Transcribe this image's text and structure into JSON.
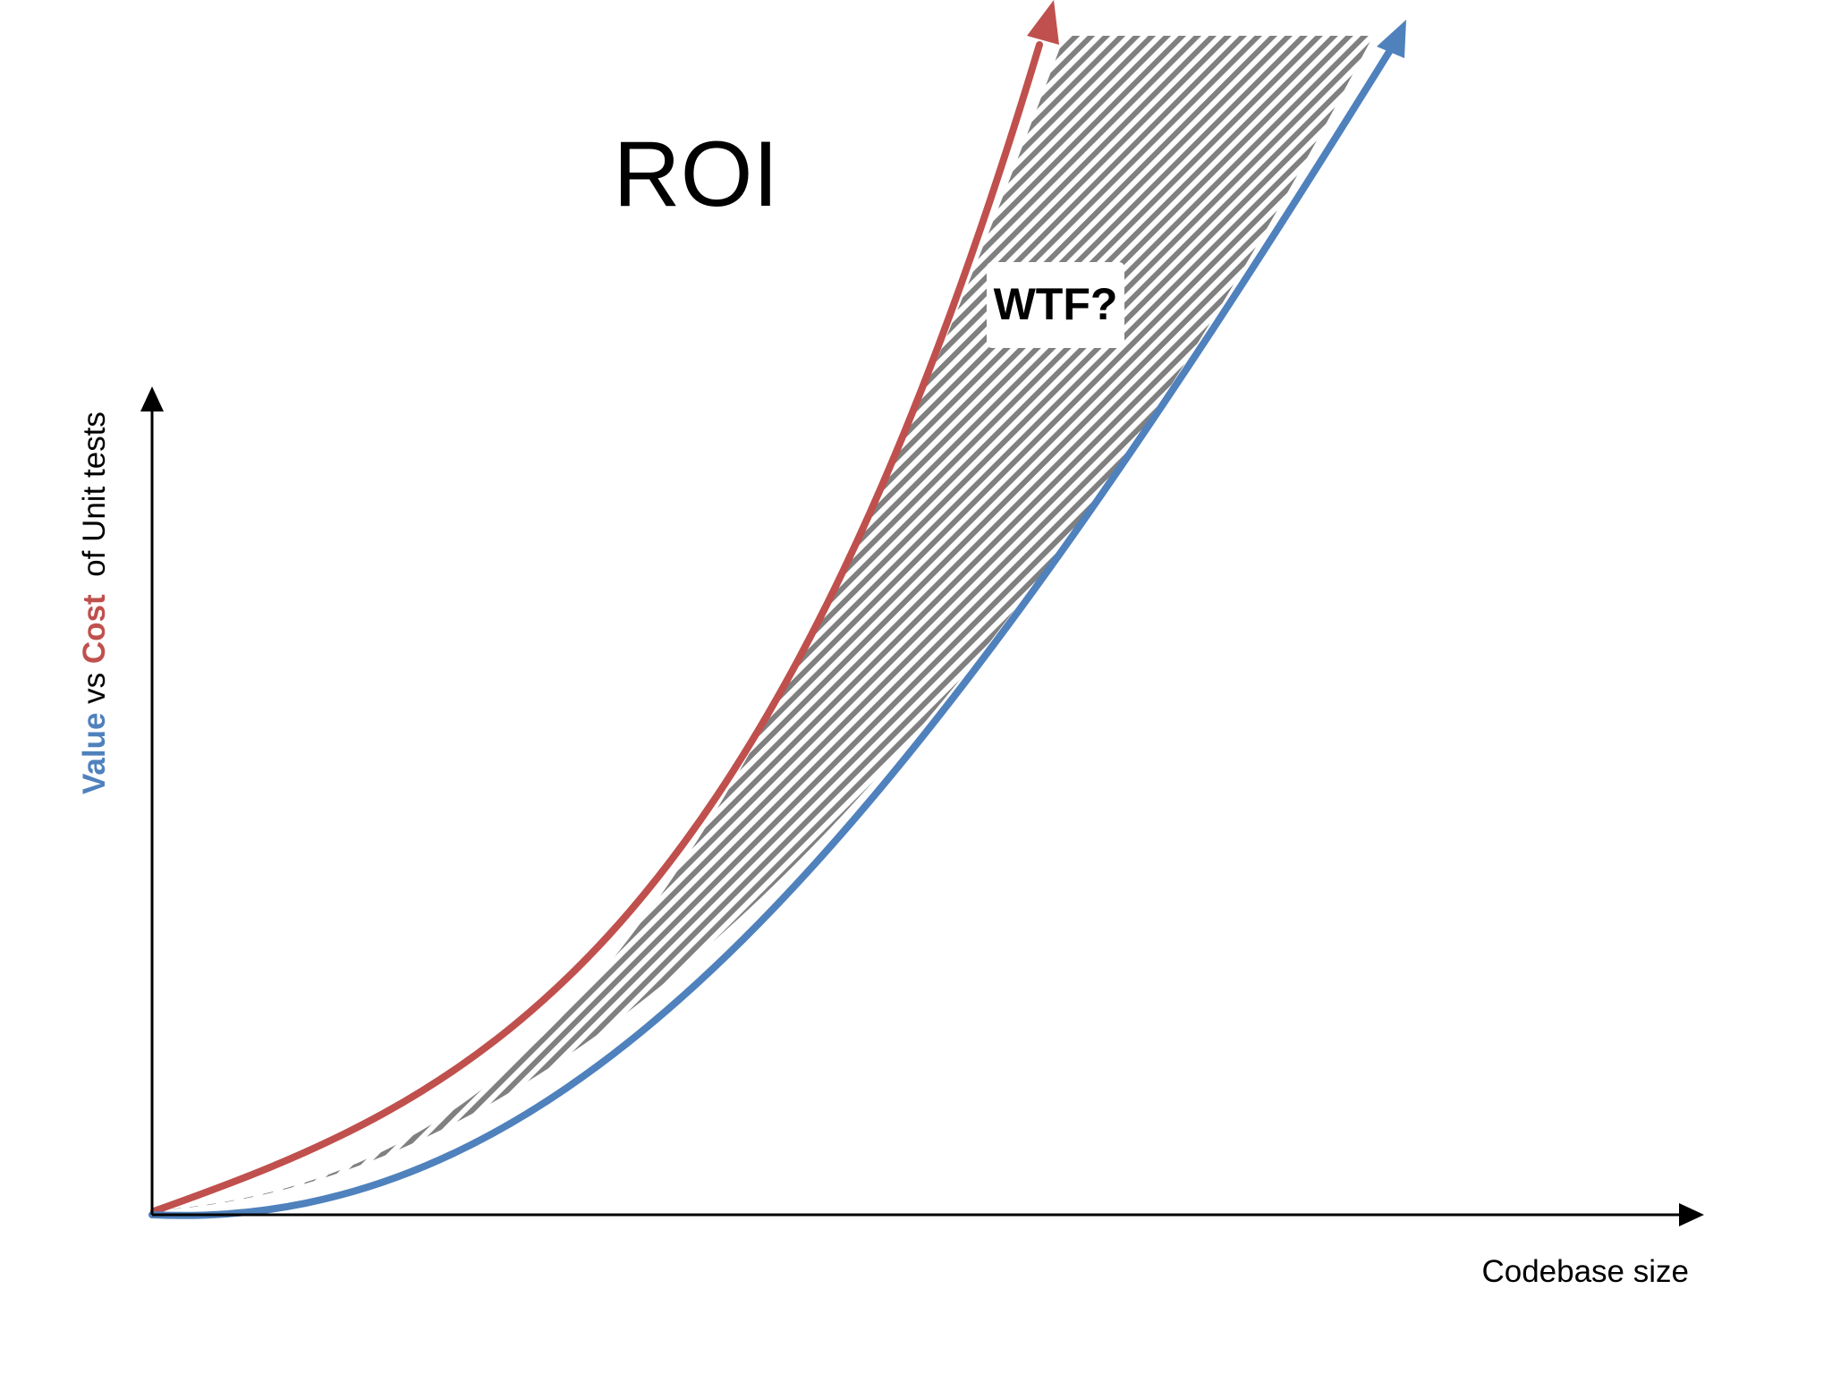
{
  "title": "ROI",
  "callout": "WTF?",
  "x_axis": {
    "label": "Codebase size"
  },
  "y_axis": {
    "label_parts": [
      {
        "text": "Value",
        "role": "value",
        "bold": true
      },
      {
        "text": " vs ",
        "role": "plain",
        "bold": false
      },
      {
        "text": "Cost",
        "role": "cost",
        "bold": true
      },
      {
        "text": "  of Unit tests",
        "role": "plain",
        "bold": false
      }
    ]
  },
  "curves": [
    {
      "role": "cost",
      "color": "#C0504D"
    },
    {
      "role": "value",
      "color": "#4F81BD"
    }
  ],
  "colors": {
    "value": "#4F81BD",
    "cost": "#C0504D",
    "hatch": "#808080",
    "axis": "#000000",
    "text": "#000000"
  }
}
